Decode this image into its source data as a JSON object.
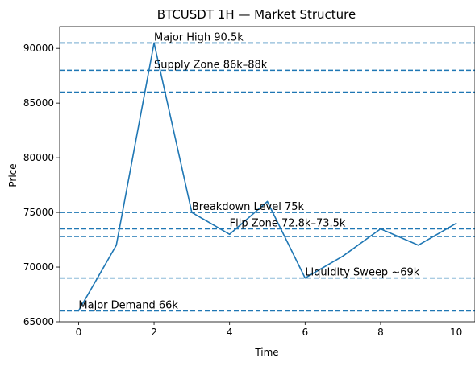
{
  "chart_data": {
    "type": "line",
    "title": "BTCUSDT 1H — Market Structure",
    "xlabel": "Time",
    "ylabel": "Price",
    "xlim": [
      -0.5,
      10.5
    ],
    "ylim": [
      65000,
      92000
    ],
    "xticks": [
      0,
      2,
      4,
      6,
      8,
      10
    ],
    "yticks": [
      65000,
      70000,
      75000,
      80000,
      85000,
      90000
    ],
    "grid": false,
    "line_color": "#1f77b4",
    "series": [
      {
        "x": [
          0,
          1,
          2,
          3,
          4,
          5,
          6,
          7,
          8,
          9,
          10
        ],
        "values": [
          66000,
          72000,
          90500,
          75000,
          73000,
          76000,
          69000,
          71000,
          73500,
          72000,
          74000
        ]
      }
    ],
    "hlines": [
      {
        "y": 90500,
        "style": "dashed"
      },
      {
        "y": 88000,
        "style": "dashed"
      },
      {
        "y": 86000,
        "style": "dashed"
      },
      {
        "y": 75000,
        "style": "dashed"
      },
      {
        "y": 73500,
        "style": "dashed"
      },
      {
        "y": 72800,
        "style": "dashed"
      },
      {
        "y": 69000,
        "style": "dashed"
      },
      {
        "y": 66000,
        "style": "dashed"
      }
    ],
    "annotations": [
      {
        "text": "Major High 90.5k",
        "x": 2,
        "y": 90500
      },
      {
        "text": "Supply Zone 86k–88k",
        "x": 2,
        "y": 88000
      },
      {
        "text": "Breakdown Level 75k",
        "x": 3,
        "y": 75000
      },
      {
        "text": "Flip Zone 72.8k–73.5k",
        "x": 4,
        "y": 73500
      },
      {
        "text": "Liquidity Sweep ~69k",
        "x": 6,
        "y": 69000
      },
      {
        "text": "Major Demand 66k",
        "x": 0,
        "y": 66000
      }
    ]
  }
}
